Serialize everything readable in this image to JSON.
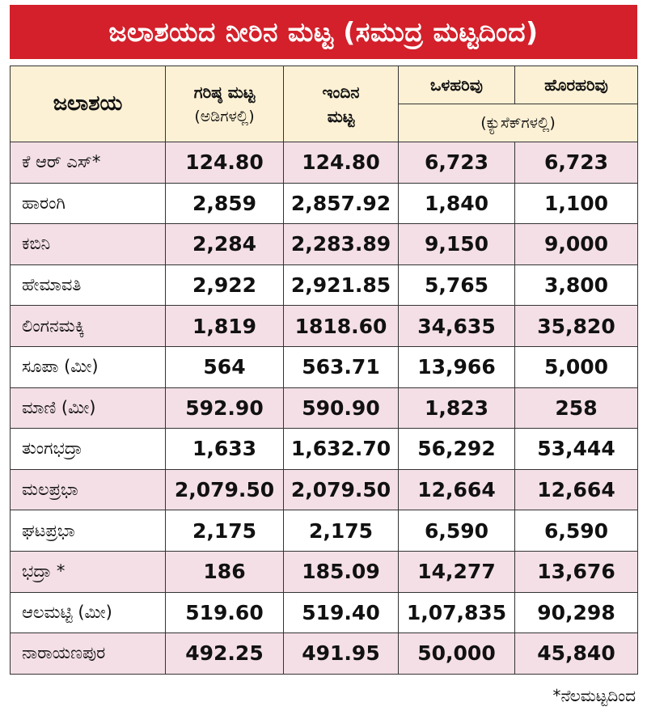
{
  "title": "ಜಲಾಶಯದ ನೀರಿನ ಮಟ್ಟ (ಸಮುದ್ರ ಮಟ್ಟದಿಂದ)",
  "headers": {
    "reservoir": "ಜಲಾಶಯ",
    "max_level_line1": "ಗರಿಷ್ಠ ಮಟ್ಟ",
    "max_level_line2": "(ಅಡಿಗಳಲ್ಲಿ)",
    "current_level_line1": "ಇಂದಿನ",
    "current_level_line2": "ಮಟ್ಟ",
    "inflow": "ಒಳಹರಿವು",
    "outflow": "ಹೊರಹರಿವು",
    "flow_unit": "(ಕ್ಯುಸೆಕ್‌ಗಳಲ್ಲಿ)"
  },
  "rows": [
    {
      "name": "ಕೆ ಆರ್ ಎಸ್*",
      "max": "124.80",
      "current": "124.80",
      "inflow": "6,723",
      "outflow": "6,723"
    },
    {
      "name": "ಹಾರಂಗಿ",
      "max": "2,859",
      "current": "2,857.92",
      "inflow": "1,840",
      "outflow": "1,100"
    },
    {
      "name": "ಕಬಿನಿ",
      "max": "2,284",
      "current": "2,283.89",
      "inflow": "9,150",
      "outflow": "9,000"
    },
    {
      "name": "ಹೇಮಾವತಿ",
      "max": "2,922",
      "current": "2,921.85",
      "inflow": "5,765",
      "outflow": "3,800"
    },
    {
      "name": "ಲಿಂಗನಮಕ್ಕಿ",
      "max": "1,819",
      "current": "1818.60",
      "inflow": "34,635",
      "outflow": "35,820"
    },
    {
      "name": "ಸೂಪಾ (ಮೀ)",
      "max": "564",
      "current": "563.71",
      "inflow": "13,966",
      "outflow": "5,000"
    },
    {
      "name": "ಮಾಣಿ (ಮೀ)",
      "max": "592.90",
      "current": "590.90",
      "inflow": "1,823",
      "outflow": "258"
    },
    {
      "name": "ತುಂಗಭದ್ರಾ",
      "max": "1,633",
      "current": "1,632.70",
      "inflow": "56,292",
      "outflow": "53,444"
    },
    {
      "name": "ಮಲಪ್ರಭಾ",
      "max": "2,079.50",
      "current": "2,079.50",
      "inflow": "12,664",
      "outflow": "12,664"
    },
    {
      "name": "ಘಟಪ್ರಭಾ",
      "max": "2,175",
      "current": "2,175",
      "inflow": "6,590",
      "outflow": "6,590"
    },
    {
      "name": "ಭದ್ರಾ *",
      "max": "186",
      "current": "185.09",
      "inflow": "14,277",
      "outflow": "13,676"
    },
    {
      "name": "ಆಲಮಟ್ಟಿ (ಮೀ)",
      "max": "519.60",
      "current": "519.40",
      "inflow": "1,07,835",
      "outflow": "90,298"
    },
    {
      "name": "ನಾರಾಯಣಪುರ",
      "max": "492.25",
      "current": "491.95",
      "inflow": "50,000",
      "outflow": "45,840"
    }
  ],
  "footnote": "*ನೆಲಮಟ್ಟದಿಂದ",
  "colors": {
    "title_bg": "#d3202b",
    "header_bg": "#fdf1d5",
    "row_alt_bg": "#f3dfe5"
  }
}
